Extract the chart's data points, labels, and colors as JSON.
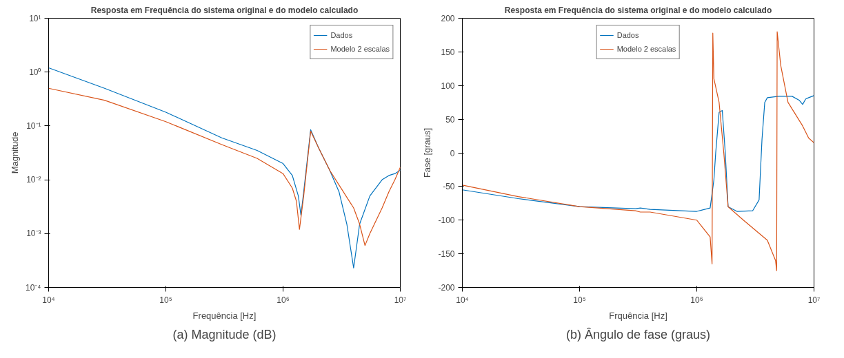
{
  "chart_data": [
    {
      "type": "line",
      "title": "Resposta em Frequência do sistema original e do modelo calculado",
      "xlabel": "Frequência [Hz]",
      "ylabel": "Magnitude",
      "log": "xy",
      "xlim": [
        10000,
        10000000
      ],
      "ylim": [
        0.0001,
        10
      ],
      "xticks": [
        {
          "value": 10000,
          "label": "10⁴"
        },
        {
          "value": 100000,
          "label": "10⁵"
        },
        {
          "value": 1000000,
          "label": "10⁶"
        },
        {
          "value": 10000000,
          "label": "10⁷"
        }
      ],
      "yticks": [
        {
          "value": 0.0001,
          "label": "10⁻⁴"
        },
        {
          "value": 0.001,
          "label": "10⁻³"
        },
        {
          "value": 0.01,
          "label": "10⁻²"
        },
        {
          "value": 0.1,
          "label": "10⁻¹"
        },
        {
          "value": 1,
          "label": "10⁰"
        },
        {
          "value": 10,
          "label": "10¹"
        }
      ],
      "legend": "top right",
      "grid": false,
      "annotations": [
        "(a) Magnitude (dB)"
      ],
      "series": [
        {
          "name": "Dados",
          "color": "#0072bd",
          "x": [
            10000,
            30000,
            100000,
            300000,
            600000,
            1000000,
            1200000,
            1350000,
            1420000,
            1500000,
            1720000,
            2000000,
            2500000,
            3000000,
            3500000,
            4000000,
            4500000,
            5500000,
            7000000,
            8000000,
            9000000,
            10000000
          ],
          "values": [
            1.2,
            0.5,
            0.18,
            0.06,
            0.035,
            0.02,
            0.012,
            0.005,
            0.0022,
            0.006,
            0.085,
            0.04,
            0.015,
            0.006,
            0.0015,
            0.00023,
            0.0015,
            0.005,
            0.01,
            0.012,
            0.013,
            0.015
          ]
        },
        {
          "name": "Modelo 2 escalas",
          "color": "#d95319",
          "x": [
            10000,
            30000,
            100000,
            300000,
            600000,
            1000000,
            1200000,
            1300000,
            1380000,
            1500000,
            1720000,
            2000000,
            2500000,
            3000000,
            4000000,
            4500000,
            5000000,
            5500000,
            7000000,
            8000000,
            9000000,
            10000000
          ],
          "values": [
            0.5,
            0.3,
            0.12,
            0.045,
            0.025,
            0.013,
            0.007,
            0.004,
            0.0012,
            0.005,
            0.08,
            0.04,
            0.015,
            0.008,
            0.003,
            0.0015,
            0.0006,
            0.001,
            0.003,
            0.006,
            0.01,
            0.017
          ]
        }
      ]
    },
    {
      "type": "line",
      "title": "Resposta em Frequência do sistema original e do modelo calculado",
      "xlabel": "Frquência [Hz]",
      "ylabel": "Fase [graus]",
      "log": "x",
      "xlim": [
        10000,
        10000000
      ],
      "ylim": [
        -200,
        200
      ],
      "xticks": [
        {
          "value": 10000,
          "label": "10⁴"
        },
        {
          "value": 100000,
          "label": "10⁵"
        },
        {
          "value": 1000000,
          "label": "10⁶"
        },
        {
          "value": 10000000,
          "label": "10⁷"
        }
      ],
      "yticks": [
        -200,
        -150,
        -100,
        -50,
        0,
        50,
        100,
        150,
        200
      ],
      "legend": "top",
      "grid": false,
      "annotations": [
        "(b) Ângulo de fase (graus)"
      ],
      "series": [
        {
          "name": "Dados",
          "color": "#0072bd",
          "x": [
            10000,
            30000,
            100000,
            300000,
            330000,
            400000,
            1000000,
            1300000,
            1400000,
            1450000,
            1550000,
            1650000,
            1750000,
            1850000,
            2200000,
            3000000,
            3400000,
            3600000,
            3800000,
            4000000,
            5000000,
            6500000,
            7500000,
            8000000,
            8500000,
            9000000,
            10000000
          ],
          "values": [
            -55,
            -68,
            -80,
            -83,
            -82,
            -84,
            -87,
            -82,
            -40,
            0,
            60,
            63,
            0,
            -80,
            -87,
            -86,
            -70,
            20,
            75,
            82,
            84,
            84,
            78,
            72,
            80,
            82,
            85
          ]
        },
        {
          "name": "Modelo 2 escalas",
          "color": "#d95319",
          "x": [
            10000,
            30000,
            100000,
            300000,
            330000,
            400000,
            1000000,
            1300000,
            1350000,
            1360000,
            1370000,
            1400000,
            1550000,
            1700000,
            1850000,
            2500000,
            4000000,
            4700000,
            4800000,
            4850000,
            5200000,
            6000000,
            8000000,
            9000000,
            10000000
          ],
          "values": [
            -48,
            -65,
            -80,
            -86,
            -88,
            -88,
            -100,
            -125,
            -165,
            0,
            178,
            110,
            75,
            0,
            -80,
            -100,
            -130,
            -160,
            -175,
            180,
            130,
            75,
            40,
            22,
            15
          ]
        }
      ]
    }
  ]
}
